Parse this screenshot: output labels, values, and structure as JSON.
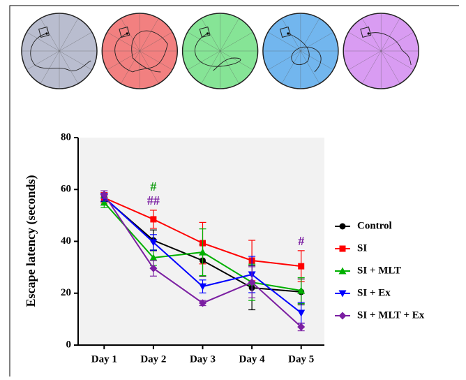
{
  "chart_data": {
    "type": "line",
    "y_label": "Escape latency (seconds)",
    "categories": [
      "Day 1",
      "Day 2",
      "Day 3",
      "Day 4",
      "Day 5"
    ],
    "ylim": [
      0,
      80
    ],
    "yticks": [
      0,
      20,
      40,
      60,
      80
    ],
    "legend": "right",
    "series": [
      {
        "name": "Control",
        "color": "#000000",
        "marker": "circle",
        "values": [
          56.8,
          40.4,
          32.6,
          22.1,
          20.5
        ],
        "errors": [
          1.5,
          4,
          6,
          8.5,
          5
        ]
      },
      {
        "name": "SI",
        "color": "#ff0000",
        "marker": "square",
        "values": [
          56.8,
          48.5,
          39.3,
          32.6,
          30.4
        ],
        "errors": [
          2,
          3.5,
          8,
          7.8,
          6
        ]
      },
      {
        "name": "SI + MLT",
        "color": "#00b000",
        "marker": "triangle-up",
        "values": [
          55,
          33.7,
          35.8,
          24.2,
          21
        ],
        "errors": [
          2,
          3,
          9,
          7,
          5
        ]
      },
      {
        "name": "SI + Ex",
        "color": "#0000ff",
        "marker": "triangle-down",
        "values": [
          57,
          39.6,
          22.6,
          27.2,
          12.4
        ],
        "errors": [
          1.5,
          3,
          2.5,
          7,
          4
        ]
      },
      {
        "name": "SI + MLT + Ex",
        "color": "#7b1fa2",
        "marker": "diamond",
        "values": [
          58,
          29.6,
          16.2,
          24.2,
          7
        ],
        "errors": [
          1.5,
          3,
          1,
          6,
          1.5
        ]
      }
    ],
    "annotations": [
      {
        "text": "#",
        "color": "#1aa01a",
        "category": "Day 2"
      },
      {
        "text": "##",
        "color": "#7b1fa2",
        "category": "Day 2"
      },
      {
        "text": "#",
        "color": "#7b1fa2",
        "category": "Day 5"
      }
    ]
  }
}
